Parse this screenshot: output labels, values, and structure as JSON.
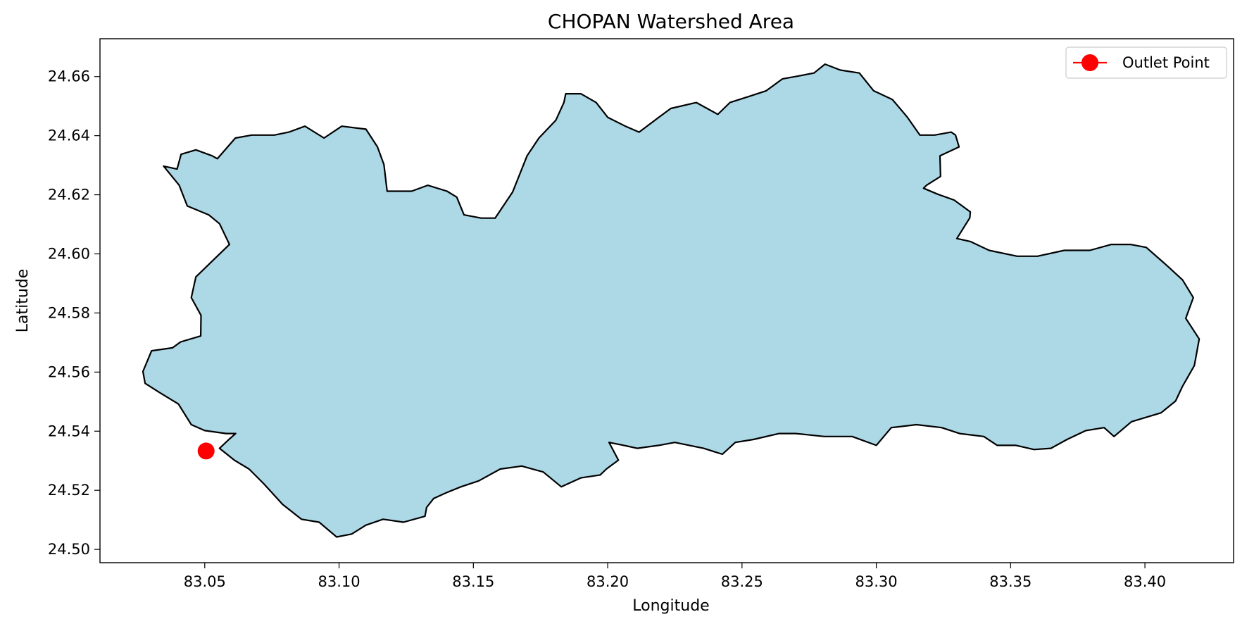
{
  "chart_data": {
    "type": "map",
    "title": "CHOPAN Watershed Area",
    "xlabel": "Longitude",
    "ylabel": "Latitude",
    "xlim": [
      83.011,
      83.433
    ],
    "ylim": [
      24.4955,
      24.6728
    ],
    "x_ticks": [
      "83.05",
      "83.10",
      "83.15",
      "83.20",
      "83.25",
      "83.30",
      "83.35",
      "83.40"
    ],
    "x_tick_values": [
      83.05,
      83.1,
      83.15,
      83.2,
      83.25,
      83.3,
      83.35,
      83.4
    ],
    "y_ticks": [
      "24.50",
      "24.52",
      "24.54",
      "24.56",
      "24.58",
      "24.60",
      "24.62",
      "24.64",
      "24.66"
    ],
    "y_tick_values": [
      24.5,
      24.52,
      24.54,
      24.56,
      24.58,
      24.6,
      24.62,
      24.64,
      24.66
    ],
    "grid": false,
    "legend": {
      "placement": "top-right",
      "entries": [
        "Outlet Point"
      ]
    },
    "watershed": {
      "fill_color": "#add8e6",
      "edge_color": "#000000",
      "boundary": [
        [
          83.0347,
          24.6297
        ],
        [
          83.0397,
          24.6287
        ],
        [
          83.0412,
          24.6337
        ],
        [
          83.0467,
          24.6352
        ],
        [
          83.0527,
          24.6332
        ],
        [
          83.0547,
          24.6322
        ],
        [
          83.0614,
          24.6392
        ],
        [
          83.0675,
          24.6402
        ],
        [
          83.0759,
          24.6402
        ],
        [
          83.0813,
          24.6412
        ],
        [
          83.0873,
          24.6432
        ],
        [
          83.0944,
          24.6392
        ],
        [
          83.101,
          24.6432
        ],
        [
          83.11,
          24.6422
        ],
        [
          83.1143,
          24.6362
        ],
        [
          83.1167,
          24.6302
        ],
        [
          83.1179,
          24.6212
        ],
        [
          83.127,
          24.6212
        ],
        [
          83.133,
          24.6232
        ],
        [
          83.1402,
          24.6212
        ],
        [
          83.1438,
          24.6192
        ],
        [
          83.1465,
          24.6132
        ],
        [
          83.1529,
          24.6121
        ],
        [
          83.1581,
          24.6121
        ],
        [
          83.1646,
          24.6209
        ],
        [
          83.17,
          24.6332
        ],
        [
          83.1744,
          24.6392
        ],
        [
          83.1807,
          24.6452
        ],
        [
          83.1837,
          24.6512
        ],
        [
          83.1844,
          24.6542
        ],
        [
          83.19,
          24.6542
        ],
        [
          83.1957,
          24.6512
        ],
        [
          83.2,
          24.6462
        ],
        [
          83.2066,
          24.6432
        ],
        [
          83.2117,
          24.6412
        ],
        [
          83.219,
          24.6462
        ],
        [
          83.2235,
          24.6492
        ],
        [
          83.233,
          24.6512
        ],
        [
          83.241,
          24.6472
        ],
        [
          83.2455,
          24.6512
        ],
        [
          83.2524,
          24.6532
        ],
        [
          83.259,
          24.6552
        ],
        [
          83.265,
          24.6592
        ],
        [
          83.271,
          24.6602
        ],
        [
          83.2768,
          24.6612
        ],
        [
          83.2809,
          24.6642
        ],
        [
          83.2866,
          24.6622
        ],
        [
          83.2937,
          24.6612
        ],
        [
          83.299,
          24.6552
        ],
        [
          83.306,
          24.6522
        ],
        [
          83.3116,
          24.6462
        ],
        [
          83.3162,
          24.6402
        ],
        [
          83.3217,
          24.6402
        ],
        [
          83.3279,
          24.6412
        ],
        [
          83.3295,
          24.6402
        ],
        [
          83.3308,
          24.6362
        ],
        [
          83.3237,
          24.6332
        ],
        [
          83.3239,
          24.6262
        ],
        [
          83.3187,
          24.6232
        ],
        [
          83.3176,
          24.6222
        ],
        [
          83.3228,
          24.6202
        ],
        [
          83.329,
          24.6182
        ],
        [
          83.335,
          24.6142
        ],
        [
          83.3348,
          24.6122
        ],
        [
          83.33,
          24.6052
        ],
        [
          83.335,
          24.6042
        ],
        [
          83.342,
          24.6012
        ],
        [
          83.3524,
          24.5992
        ],
        [
          83.36,
          24.5992
        ],
        [
          83.37,
          24.6012
        ],
        [
          83.3795,
          24.6012
        ],
        [
          83.3875,
          24.6032
        ],
        [
          83.3946,
          24.6032
        ],
        [
          83.4005,
          24.6022
        ],
        [
          83.408,
          24.5962
        ],
        [
          83.414,
          24.5912
        ],
        [
          83.418,
          24.5852
        ],
        [
          83.4152,
          24.5782
        ],
        [
          83.4202,
          24.5712
        ],
        [
          83.4184,
          24.5622
        ],
        [
          83.414,
          24.5552
        ],
        [
          83.4114,
          24.5502
        ],
        [
          83.406,
          24.5462
        ],
        [
          83.395,
          24.5432
        ],
        [
          83.3885,
          24.5382
        ],
        [
          83.3848,
          24.5412
        ],
        [
          83.378,
          24.5402
        ],
        [
          83.371,
          24.5372
        ],
        [
          83.365,
          24.5342
        ],
        [
          83.3587,
          24.5338
        ],
        [
          83.352,
          24.5352
        ],
        [
          83.345,
          24.5352
        ],
        [
          83.34,
          24.5382
        ],
        [
          83.331,
          24.5392
        ],
        [
          83.3243,
          24.5412
        ],
        [
          83.315,
          24.5422
        ],
        [
          83.3056,
          24.5412
        ],
        [
          83.3,
          24.5352
        ],
        [
          83.291,
          24.5382
        ],
        [
          83.2806,
          24.5382
        ],
        [
          83.27,
          24.5392
        ],
        [
          83.2638,
          24.5392
        ],
        [
          83.2543,
          24.5372
        ],
        [
          83.2475,
          24.5362
        ],
        [
          83.2427,
          24.5322
        ],
        [
          83.2357,
          24.5342
        ],
        [
          83.225,
          24.5362
        ],
        [
          83.219,
          24.5352
        ],
        [
          83.211,
          24.5342
        ],
        [
          83.206,
          24.5352
        ],
        [
          83.2005,
          24.5362
        ],
        [
          83.204,
          24.5302
        ],
        [
          83.1995,
          24.5272
        ],
        [
          83.1972,
          24.5252
        ],
        [
          83.19,
          24.5242
        ],
        [
          83.1827,
          24.5212
        ],
        [
          83.176,
          24.5262
        ],
        [
          83.168,
          24.5282
        ],
        [
          83.16,
          24.5272
        ],
        [
          83.152,
          24.5232
        ],
        [
          83.1454,
          24.5212
        ],
        [
          83.14,
          24.5192
        ],
        [
          83.1352,
          24.5172
        ],
        [
          83.1326,
          24.5142
        ],
        [
          83.132,
          24.5112
        ],
        [
          83.124,
          24.5092
        ],
        [
          83.1164,
          24.5102
        ],
        [
          83.11,
          24.5082
        ],
        [
          83.1047,
          24.5052
        ],
        [
          83.0991,
          24.5042
        ],
        [
          83.0926,
          24.5092
        ],
        [
          83.086,
          24.5102
        ],
        [
          83.079,
          24.5152
        ],
        [
          83.072,
          24.5222
        ],
        [
          83.0665,
          24.5272
        ],
        [
          83.061,
          24.5302
        ],
        [
          83.0555,
          24.5342
        ],
        [
          83.059,
          24.5372
        ],
        [
          83.0615,
          24.5392
        ],
        [
          83.058,
          24.5392
        ],
        [
          83.05,
          24.5402
        ],
        [
          83.045,
          24.5422
        ],
        [
          83.0402,
          24.5492
        ],
        [
          83.033,
          24.5532
        ],
        [
          83.0278,
          24.5562
        ],
        [
          83.027,
          24.5602
        ],
        [
          83.0302,
          24.5672
        ],
        [
          83.038,
          24.5682
        ],
        [
          83.041,
          24.5702
        ],
        [
          83.0485,
          24.5722
        ],
        [
          83.0486,
          24.5792
        ],
        [
          83.045,
          24.5852
        ],
        [
          83.0467,
          24.5922
        ],
        [
          83.0524,
          24.5972
        ],
        [
          83.0592,
          24.6032
        ],
        [
          83.0555,
          24.6102
        ],
        [
          83.0515,
          24.6132
        ],
        [
          83.0435,
          24.6162
        ],
        [
          83.0405,
          24.6232
        ],
        [
          83.0347,
          24.6297
        ]
      ]
    },
    "series": [
      {
        "name": "Outlet Point",
        "color": "#ff0000",
        "x": [
          83.0505
        ],
        "y": [
          24.5333
        ]
      }
    ]
  }
}
